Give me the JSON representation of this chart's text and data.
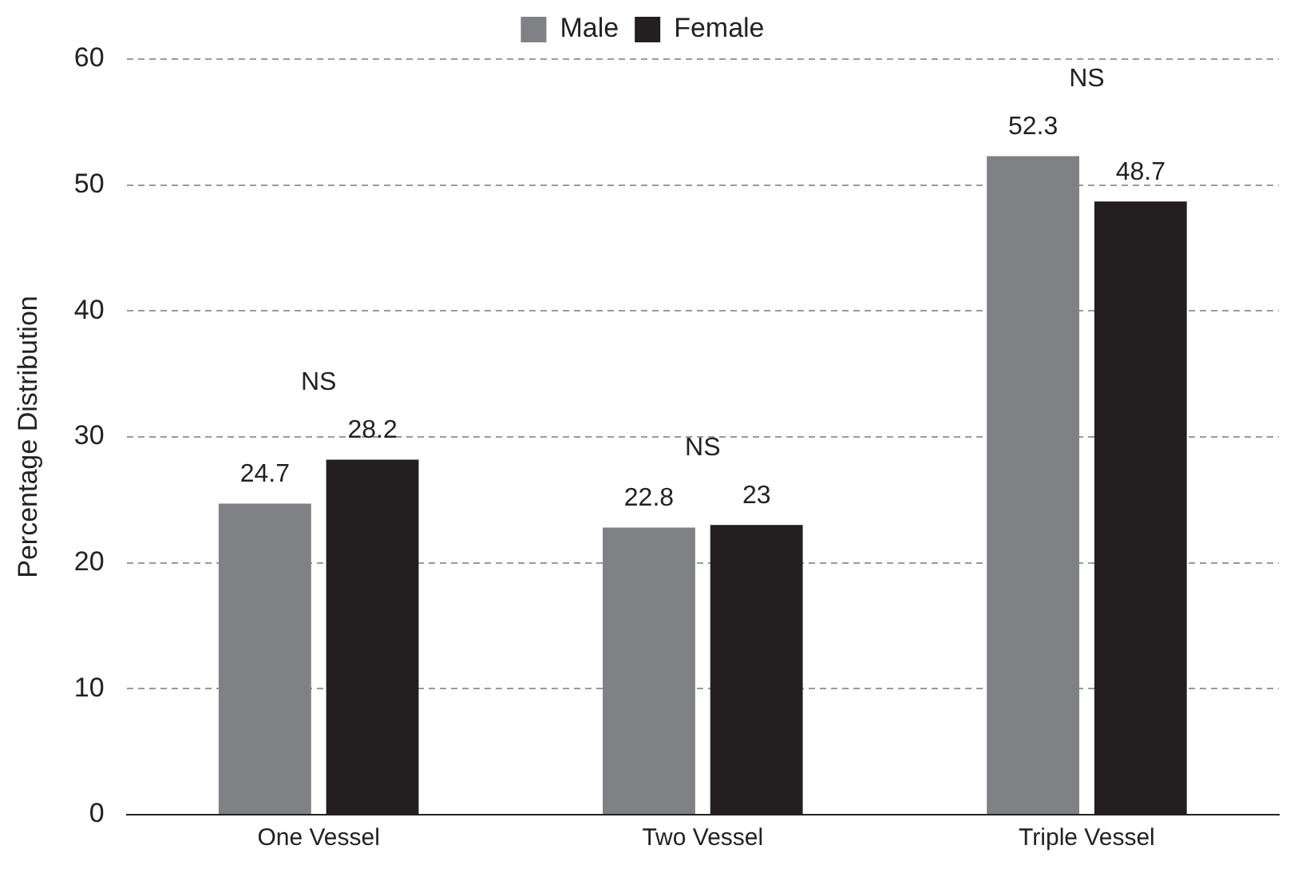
{
  "chart_data": {
    "type": "bar",
    "ylabel": "Percentage Distribution",
    "categories": [
      "One Vessel",
      "Two Vessel",
      "Triple Vessel"
    ],
    "series": [
      {
        "name": "Male",
        "color": "#808184",
        "values": [
          24.7,
          22.8,
          52.3
        ]
      },
      {
        "name": "Female",
        "color": "#231f20",
        "values": [
          28.2,
          23,
          48.7
        ]
      }
    ],
    "ylim": [
      0,
      60
    ],
    "yticks": [
      0,
      10,
      20,
      30,
      40,
      50,
      60
    ],
    "grid": "y",
    "legend": "top",
    "data_labels": true,
    "annotations": [
      "NS",
      "NS",
      "NS"
    ]
  }
}
